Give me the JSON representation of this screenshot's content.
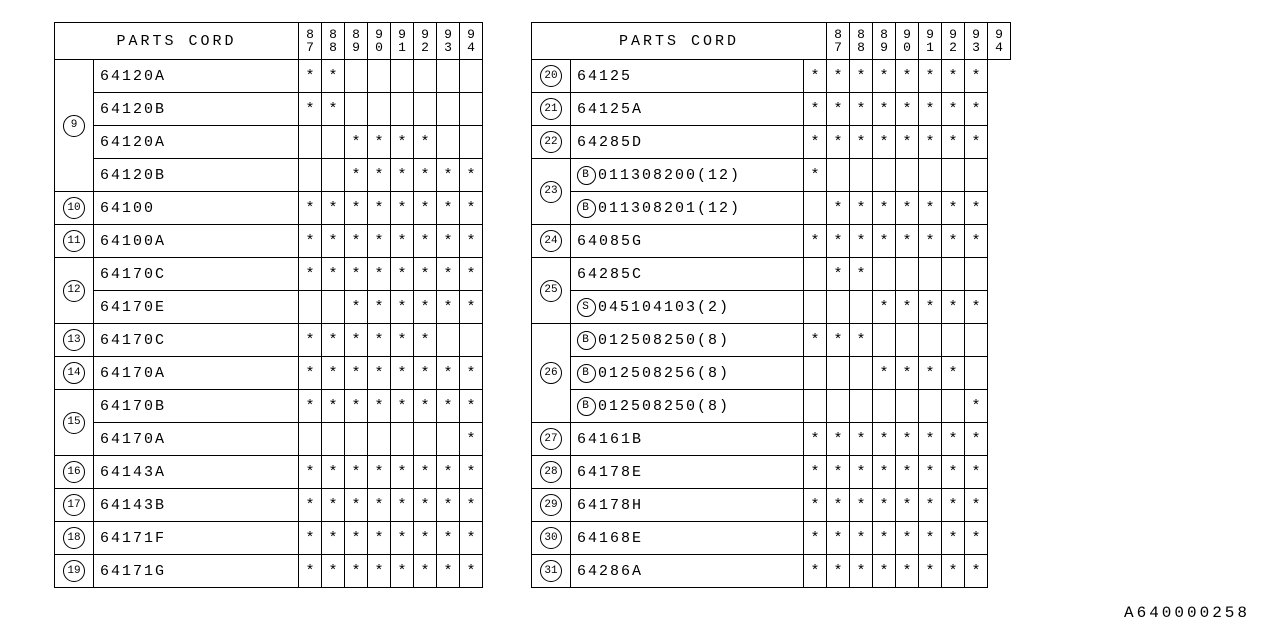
{
  "header_label": "PARTS CORD",
  "years": [
    "87",
    "88",
    "89",
    "90",
    "91",
    "92",
    "93",
    "94"
  ],
  "star": "*",
  "footer": "A640000258",
  "left": [
    {
      "num": "9",
      "rows": [
        {
          "code": "64120A",
          "m": [
            1,
            1,
            0,
            0,
            0,
            0,
            0,
            0
          ]
        },
        {
          "code": "64120B",
          "m": [
            1,
            1,
            0,
            0,
            0,
            0,
            0,
            0
          ]
        },
        {
          "code": "64120A",
          "m": [
            0,
            0,
            1,
            1,
            1,
            1,
            0,
            0
          ]
        },
        {
          "code": "64120B",
          "m": [
            0,
            0,
            1,
            1,
            1,
            1,
            1,
            1
          ]
        }
      ]
    },
    {
      "num": "10",
      "rows": [
        {
          "code": "64100",
          "m": [
            1,
            1,
            1,
            1,
            1,
            1,
            1,
            1
          ]
        }
      ]
    },
    {
      "num": "11",
      "rows": [
        {
          "code": "64100A",
          "m": [
            1,
            1,
            1,
            1,
            1,
            1,
            1,
            1
          ]
        }
      ]
    },
    {
      "num": "12",
      "rows": [
        {
          "code": "64170C",
          "m": [
            1,
            1,
            1,
            1,
            1,
            1,
            1,
            1
          ]
        },
        {
          "code": "64170E",
          "m": [
            0,
            0,
            1,
            1,
            1,
            1,
            1,
            1
          ]
        }
      ]
    },
    {
      "num": "13",
      "rows": [
        {
          "code": "64170C",
          "m": [
            1,
            1,
            1,
            1,
            1,
            1,
            0,
            0
          ]
        }
      ]
    },
    {
      "num": "14",
      "rows": [
        {
          "code": "64170A",
          "m": [
            1,
            1,
            1,
            1,
            1,
            1,
            1,
            1
          ]
        }
      ]
    },
    {
      "num": "15",
      "rows": [
        {
          "code": "64170B",
          "m": [
            1,
            1,
            1,
            1,
            1,
            1,
            1,
            1
          ]
        },
        {
          "code": "64170A",
          "m": [
            0,
            0,
            0,
            0,
            0,
            0,
            0,
            1
          ]
        }
      ]
    },
    {
      "num": "16",
      "rows": [
        {
          "code": "64143A",
          "m": [
            1,
            1,
            1,
            1,
            1,
            1,
            1,
            1
          ]
        }
      ]
    },
    {
      "num": "17",
      "rows": [
        {
          "code": "64143B",
          "m": [
            1,
            1,
            1,
            1,
            1,
            1,
            1,
            1
          ]
        }
      ]
    },
    {
      "num": "18",
      "rows": [
        {
          "code": "64171F",
          "m": [
            1,
            1,
            1,
            1,
            1,
            1,
            1,
            1
          ]
        }
      ]
    },
    {
      "num": "19",
      "rows": [
        {
          "code": "64171G",
          "m": [
            1,
            1,
            1,
            1,
            1,
            1,
            1,
            1
          ]
        }
      ]
    }
  ],
  "right": [
    {
      "num": "20",
      "rows": [
        {
          "code": "64125",
          "m": [
            1,
            1,
            1,
            1,
            1,
            1,
            1,
            1
          ]
        }
      ]
    },
    {
      "num": "21",
      "rows": [
        {
          "code": "64125A",
          "m": [
            1,
            1,
            1,
            1,
            1,
            1,
            1,
            1
          ]
        }
      ]
    },
    {
      "num": "22",
      "rows": [
        {
          "code": "64285D",
          "m": [
            1,
            1,
            1,
            1,
            1,
            1,
            1,
            1
          ]
        }
      ]
    },
    {
      "num": "23",
      "rows": [
        {
          "sub": "B",
          "code": "011308200(12)",
          "m": [
            1,
            0,
            0,
            0,
            0,
            0,
            0,
            0
          ]
        },
        {
          "sub": "B",
          "code": "011308201(12)",
          "m": [
            0,
            1,
            1,
            1,
            1,
            1,
            1,
            1
          ]
        }
      ]
    },
    {
      "num": "24",
      "rows": [
        {
          "code": "64085G",
          "m": [
            1,
            1,
            1,
            1,
            1,
            1,
            1,
            1
          ]
        }
      ]
    },
    {
      "num": "25",
      "rows": [
        {
          "code": "64285C",
          "m": [
            0,
            1,
            1,
            0,
            0,
            0,
            0,
            0
          ]
        },
        {
          "sub": "S",
          "code": "045104103(2)",
          "m": [
            0,
            0,
            0,
            1,
            1,
            1,
            1,
            1
          ]
        }
      ]
    },
    {
      "num": "26",
      "rows": [
        {
          "sub": "B",
          "code": "012508250(8)",
          "m": [
            1,
            1,
            1,
            0,
            0,
            0,
            0,
            0
          ]
        },
        {
          "sub": "B",
          "code": "012508256(8)",
          "m": [
            0,
            0,
            0,
            1,
            1,
            1,
            1,
            0
          ]
        },
        {
          "sub": "B",
          "code": "012508250(8)",
          "m": [
            0,
            0,
            0,
            0,
            0,
            0,
            0,
            1
          ]
        }
      ]
    },
    {
      "num": "27",
      "rows": [
        {
          "code": "64161B",
          "m": [
            1,
            1,
            1,
            1,
            1,
            1,
            1,
            1
          ]
        }
      ]
    },
    {
      "num": "28",
      "rows": [
        {
          "code": "64178E",
          "m": [
            1,
            1,
            1,
            1,
            1,
            1,
            1,
            1
          ]
        }
      ]
    },
    {
      "num": "29",
      "rows": [
        {
          "code": "64178H",
          "m": [
            1,
            1,
            1,
            1,
            1,
            1,
            1,
            1
          ]
        }
      ]
    },
    {
      "num": "30",
      "rows": [
        {
          "code": "64168E",
          "m": [
            1,
            1,
            1,
            1,
            1,
            1,
            1,
            1
          ]
        }
      ]
    },
    {
      "num": "31",
      "rows": [
        {
          "code": "64286A",
          "m": [
            1,
            1,
            1,
            1,
            1,
            1,
            1,
            1
          ]
        }
      ]
    }
  ]
}
